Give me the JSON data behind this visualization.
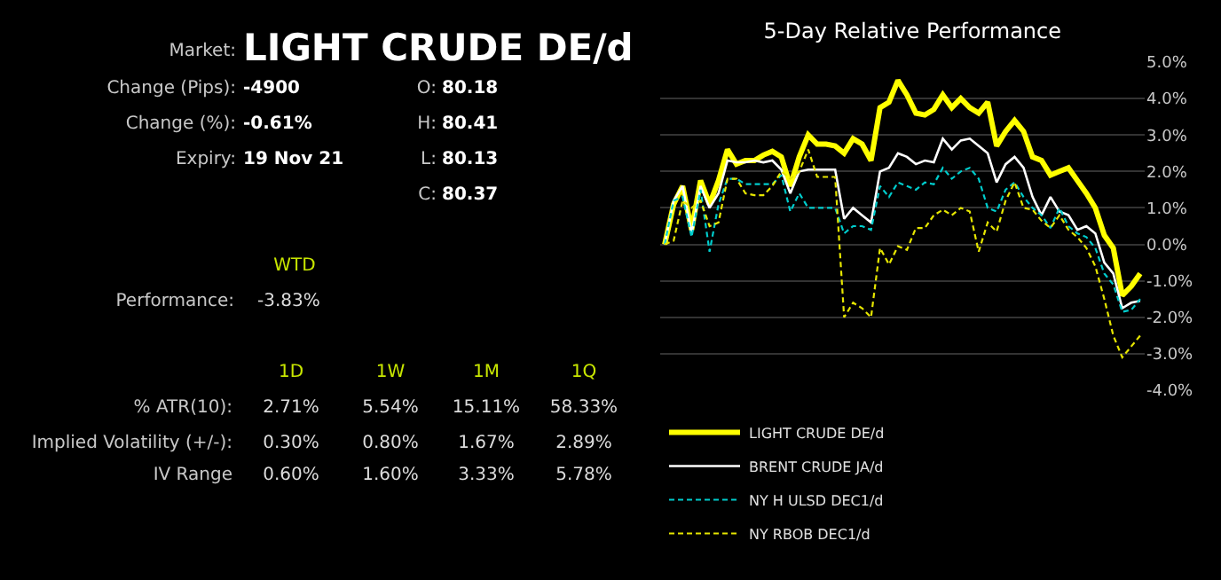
{
  "chart_data": [
    {
      "type": "other",
      "annotations": [
        "Market:",
        "LIGHT CRUDE DE/d",
        "Change (Pips):",
        "-4900",
        "O:",
        "80.18",
        "Change (%):",
        "-0.61%",
        "H:",
        "80.41",
        "Expiry:",
        "19 Nov 21",
        "L:",
        "80.13",
        "C:",
        "80.37",
        "WTD",
        "Performance:",
        "-3.83%",
        "1D",
        "1W",
        "1M",
        "1Q",
        "% ATR(10):",
        "2.71%",
        "5.54%",
        "15.11%",
        "58.33%",
        "Implied Volatility (+/-):",
        "0.30%",
        "0.80%",
        "1.67%",
        "2.89%",
        "IV Range",
        "0.60%",
        "1.60%",
        "3.33%",
        "5.78%"
      ]
    },
    {
      "type": "line",
      "title": "5-Day Relative Performance",
      "categories": [
        null,
        null,
        null,
        null,
        null,
        null,
        null,
        null,
        null,
        null,
        null,
        null,
        null,
        null,
        null,
        null,
        null,
        null,
        null,
        null,
        null,
        null,
        null,
        null,
        null,
        null,
        null,
        null,
        null,
        null,
        null,
        null,
        null,
        null,
        null,
        null,
        null,
        null,
        null,
        null,
        null,
        null,
        null,
        null,
        null,
        null,
        null,
        null,
        null,
        null,
        null,
        null,
        null,
        null
      ],
      "series": [
        {
          "name": "LIGHT CRUDE DE/d",
          "color": "#ffff00",
          "line_style": "solid",
          "values": [
            0,
            1.1,
            1.6,
            0.4,
            1.75,
            1.1,
            1.75,
            2.6,
            2.2,
            2.3,
            2.3,
            2.45,
            2.55,
            2.4,
            1.6,
            2.4,
            3.0,
            2.75,
            2.75,
            2.7,
            2.5,
            2.9,
            2.75,
            2.3,
            3.75,
            3.9,
            4.5,
            4.1,
            3.6,
            3.55,
            3.7,
            4.1,
            3.75,
            4.0,
            3.75,
            3.6,
            3.9,
            2.7,
            3.1,
            3.4,
            3.1,
            2.4,
            2.3,
            1.9,
            2.0,
            2.1,
            1.75,
            1.4,
            1.0,
            0.25,
            -0.1,
            -1.4,
            -1.15,
            -0.8
          ]
        },
        {
          "name": "BRENT CRUDE JA/d",
          "color": "#ffffff",
          "line_style": "solid",
          "values": [
            0,
            1.2,
            1.6,
            0.3,
            1.6,
            1.0,
            1.4,
            2.3,
            2.25,
            2.25,
            2.3,
            2.25,
            2.3,
            2.05,
            1.4,
            2.0,
            2.05,
            2.05,
            2.05,
            2.05,
            0.7,
            1.0,
            0.8,
            0.6,
            2.0,
            2.1,
            2.5,
            2.4,
            2.2,
            2.3,
            2.25,
            2.9,
            2.6,
            2.85,
            2.9,
            2.7,
            2.5,
            1.7,
            2.2,
            2.4,
            2.1,
            1.3,
            0.8,
            1.3,
            0.9,
            0.8,
            0.4,
            0.5,
            0.3,
            -0.5,
            -0.8,
            -1.75,
            -1.6,
            -1.55
          ]
        },
        {
          "name": "NY H ULSD DEC1/d",
          "color": "#00cccc",
          "line_style": "dashed",
          "values": [
            0,
            1.2,
            1.3,
            0.2,
            1.5,
            -0.2,
            1.1,
            1.8,
            1.8,
            1.65,
            1.65,
            1.65,
            1.65,
            1.9,
            0.9,
            1.4,
            1.0,
            1.0,
            1.0,
            1.0,
            0.3,
            0.5,
            0.5,
            0.4,
            1.6,
            1.3,
            1.7,
            1.6,
            1.5,
            1.7,
            1.65,
            2.1,
            1.8,
            2.0,
            2.1,
            1.8,
            1.0,
            0.9,
            1.5,
            1.7,
            1.3,
            1.0,
            0.8,
            0.45,
            1.0,
            0.5,
            0.3,
            0.2,
            -0.1,
            -0.8,
            -1.1,
            -1.85,
            -1.8,
            -1.5
          ]
        },
        {
          "name": "NY RBOB DEC1/d",
          "color": "#e6e600",
          "line_style": "dashed",
          "values": [
            0,
            0.1,
            1.2,
            1.0,
            1.2,
            0.5,
            0.6,
            1.8,
            1.8,
            1.4,
            1.35,
            1.35,
            1.6,
            2.0,
            1.8,
            2.0,
            2.6,
            1.85,
            1.85,
            1.85,
            -2.0,
            -1.6,
            -1.75,
            -2.0,
            -0.1,
            -0.55,
            -0.05,
            -0.15,
            0.45,
            0.45,
            0.8,
            0.95,
            0.8,
            1.0,
            0.9,
            -0.2,
            0.6,
            0.35,
            1.2,
            1.7,
            1.0,
            0.95,
            0.65,
            0.45,
            0.8,
            0.4,
            0.2,
            -0.1,
            -0.6,
            -1.5,
            -2.5,
            -3.1,
            -2.8,
            -2.5
          ]
        }
      ],
      "ylim": [
        -4,
        5
      ],
      "yticks": [
        {
          "value": 5,
          "label": "5.0%"
        },
        {
          "value": 4,
          "label": "4.0%"
        },
        {
          "value": 3,
          "label": "3.0%"
        },
        {
          "value": 2,
          "label": "2.0%"
        },
        {
          "value": 1,
          "label": "1.0%"
        },
        {
          "value": 0,
          "label": "0.0%"
        },
        {
          "value": -1,
          "label": "-1.0%"
        },
        {
          "value": -2,
          "label": "-2.0%"
        },
        {
          "value": -3,
          "label": "-3.0%"
        },
        {
          "value": -4,
          "label": "-4.0%"
        }
      ],
      "grid": "y",
      "legend": "bottom",
      "tick_labels": "y",
      "marker": "none"
    }
  ]
}
